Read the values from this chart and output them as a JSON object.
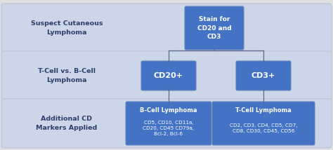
{
  "fig_bg": "#e0e0e0",
  "row_bg": "#cdd6e8",
  "box_blue": "#4472c4",
  "text_white": "#ffffff",
  "text_dark": "#2c3e6b",
  "row_labels": [
    "Suspect Cutaneous\nLymphoma",
    "T-Cell vs. B-Cell\nLymphoma",
    "Additional CD\nMarkers Applied"
  ],
  "top_box_text": "Stain for\nCD20 and\nCD3",
  "mid_left_text": "CD20+",
  "mid_right_text": "CD3+",
  "bot_left_title": "B-Cell Lymphoma",
  "bot_left_body": "CD5, CD10, CD11a,\nCD20, CD45 CD79a,\nBcl-2, Bcl-6",
  "bot_right_title": "T-Cell Lymphoma",
  "bot_right_body": "CD2, CD3, CD4, CD5, CD7,\nCD8, CD30, CD45, CD56",
  "line_color": "#5a6a8a",
  "row_edge_color": "#b8c4d8"
}
